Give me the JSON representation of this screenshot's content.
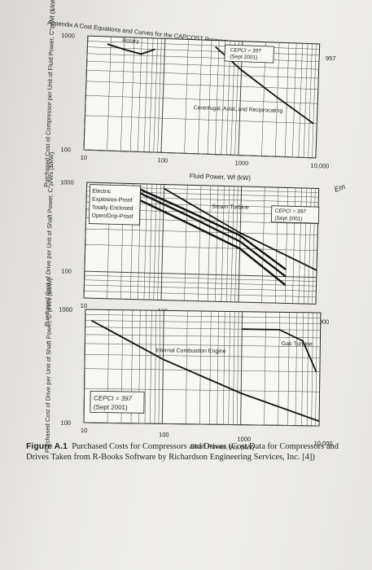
{
  "header": {
    "text": "Appendix A   Cost Equations and Curves for the CAPCOST Program"
  },
  "page_number": "957",
  "margin_note": "Em",
  "caption": {
    "label": "Figure A.1",
    "text": "Purchased Costs for Compressors and Drives (Cost Data for Compressors and Drives Taken from R-Books Software by Richardson Engineering Services, Inc. [4])"
  },
  "chart_data": [
    {
      "type": "line",
      "ylabel": "Purchased Cost of Compressor per Unit of Fluid Power, C°p/Wf ($/kW)",
      "xlabel": "Fluid Power, Wf (kW)",
      "x_ticks": [
        "10",
        "100",
        "1000",
        "10,000"
      ],
      "y_ticks": [
        "100",
        "1000"
      ],
      "xlim": [
        10,
        10000
      ],
      "ylim": [
        100,
        1000
      ],
      "x_scale": "log",
      "y_scale": "log",
      "annotation": [
        "CEPCI = 397",
        "(Sept 2001)"
      ],
      "series": [
        {
          "name": "Rotary",
          "x": [
            18,
            30,
            50,
            75
          ],
          "y": [
            860,
            780,
            720,
            800
          ]
        },
        {
          "name": "Centrifugal, Axial, and Reciprocating",
          "x": [
            450,
            1000,
            3000,
            9000
          ],
          "y": [
            880,
            560,
            330,
            200
          ]
        }
      ]
    },
    {
      "type": "line",
      "ylabel": "Purchased Cost of Drive per Unit of Shaft Power, C°p/Ws ($/kW)",
      "xlabel": "Shaft Power, Ws (kW)",
      "x_ticks": [
        "10",
        "100",
        "1000",
        "10,000"
      ],
      "y_ticks": [
        "100",
        "1000"
      ],
      "xlim": [
        10,
        10000
      ],
      "ylim": [
        50,
        1000
      ],
      "x_scale": "log",
      "y_scale": "log",
      "annotation": [
        "CEPCI = 397",
        "(Sept 2001)"
      ],
      "legend": [
        "Electric",
        "Explosion-Proof",
        "Totally Enclosed",
        "Open/Drip-Proof"
      ],
      "series": [
        {
          "name": "Explosion-Proof",
          "x": [
            50,
            200,
            1000,
            4000
          ],
          "y": [
            860,
            520,
            280,
            120
          ]
        },
        {
          "name": "Totally Enclosed",
          "x": [
            50,
            200,
            1000,
            4000
          ],
          "y": [
            780,
            460,
            240,
            100
          ]
        },
        {
          "name": "Open/Drip-Proof",
          "x": [
            50,
            200,
            1000,
            4000
          ],
          "y": [
            650,
            380,
            200,
            80
          ]
        },
        {
          "name": "Steam Turbine",
          "x": [
            100,
            1000,
            10000
          ],
          "y": [
            900,
            300,
            120
          ]
        }
      ]
    },
    {
      "type": "line",
      "ylabel": "Purchased Cost of Drive per Unit of Shaft Power, C°p/Ws ($/kW)",
      "xlabel": "Shaft Power, Ws (kW)",
      "x_ticks": [
        "10",
        "100",
        "1000",
        "10,000"
      ],
      "y_ticks": [
        "100",
        "1000"
      ],
      "xlim": [
        10,
        10000
      ],
      "ylim": [
        100,
        1000
      ],
      "x_scale": "log",
      "y_scale": "log",
      "annotation": [
        "CEPCI = 397",
        "(Sept 2001)"
      ],
      "series": [
        {
          "name": "Internal Combustion Engine",
          "x": [
            12,
            100,
            1000,
            10000
          ],
          "y": [
            800,
            370,
            190,
            110
          ]
        },
        {
          "name": "Gas Turbine",
          "x": [
            1000,
            3000,
            6000,
            9000
          ],
          "y": [
            700,
            700,
            560,
            300
          ]
        }
      ]
    }
  ]
}
